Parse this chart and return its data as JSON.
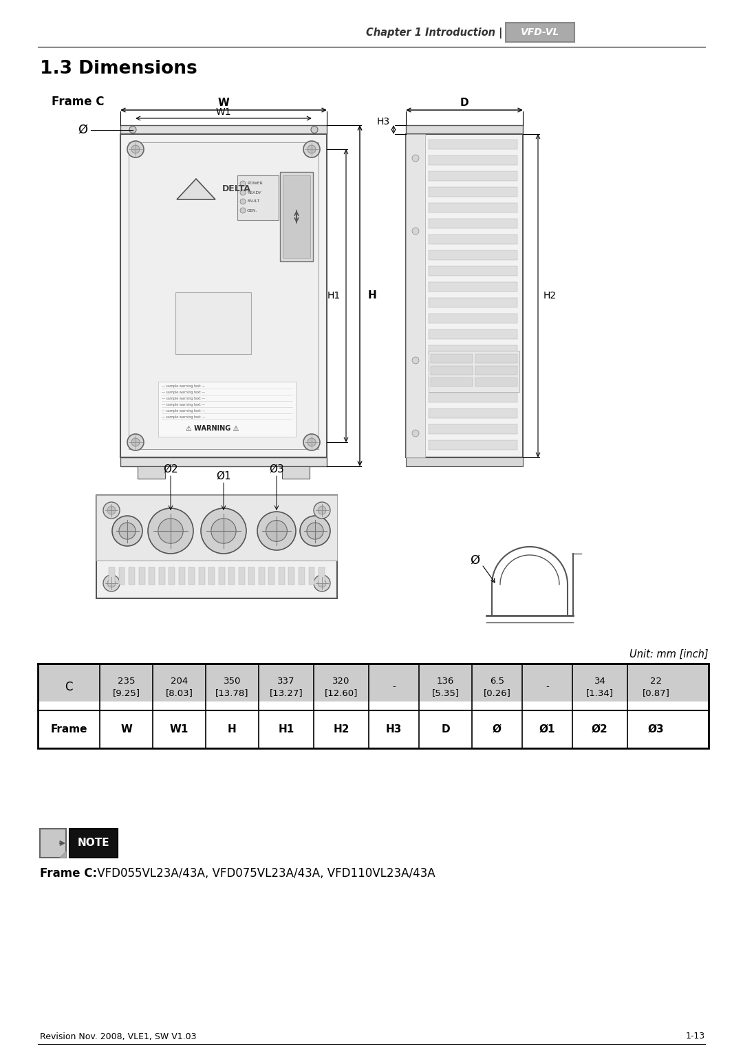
{
  "title": "1.3 Dimensions",
  "header_italic": "Chapter 1 Introduction |",
  "brand": "VFD-VL",
  "frame_label": "Frame C",
  "unit_text": "Unit: mm [inch]",
  "table_headers": [
    "Frame",
    "W",
    "W1",
    "H",
    "H1",
    "H2",
    "H3",
    "D",
    "Ø",
    "Ø1",
    "Ø2",
    "Ø3"
  ],
  "table_row_frame": "C",
  "table_row_values": [
    "235\n[9.25]",
    "204\n[8.03]",
    "350\n[13.78]",
    "337\n[13.27]",
    "320\n[12.60]",
    "-",
    "136\n[5.35]",
    "6.5\n[0.26]",
    "-",
    "34\n[1.34]",
    "22\n[0.87]"
  ],
  "note_text_bold": "Frame C:",
  "note_text_normal": " VFD055VL23A/43A, VFD075VL23A/43A, VFD110VL23A/43A",
  "footer_left": "Revision Nov. 2008, VLE1, SW V1.03",
  "footer_right": "1-13",
  "bg_color": "#ffffff",
  "table_header_bg": "#cccccc",
  "line_color": "#555555",
  "dim_color": "#000000"
}
